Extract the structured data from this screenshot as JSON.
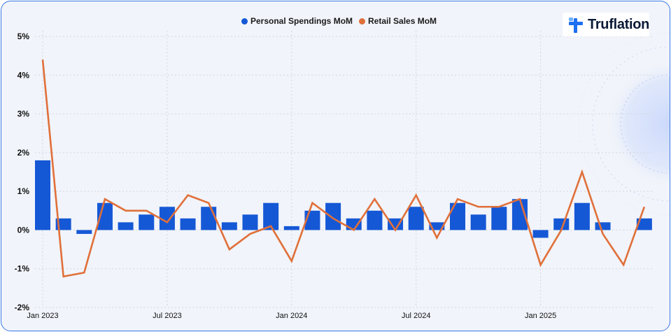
{
  "brand": {
    "name": "Truflation",
    "logo_colors": {
      "mark": "#1f6ff2",
      "accent": "#6fb2ff",
      "text": "#0b1a38"
    }
  },
  "colors": {
    "series_bars": "#1558d6",
    "series_line": "#e0703a",
    "background": "#f1f4fa",
    "border": "#3b78e7",
    "grid": "#d3d7de"
  },
  "chart_data": {
    "type": "bar",
    "title": "",
    "xlabel": "",
    "ylabel": "",
    "ylim": [
      -2,
      5
    ],
    "yticks": [
      -2,
      -1,
      0,
      1,
      2,
      3,
      4,
      5
    ],
    "ytick_labels": [
      "-2%",
      "-1%",
      "0%",
      "1%",
      "2%",
      "3%",
      "4%",
      "5%"
    ],
    "xtick_labels": [
      {
        "label": "Jan 2023",
        "index": 0
      },
      {
        "label": "Jul 2023",
        "index": 6
      },
      {
        "label": "Jan 2024",
        "index": 12
      },
      {
        "label": "Jul 2024",
        "index": 18
      },
      {
        "label": "Jan 2025",
        "index": 24
      }
    ],
    "categories": [
      "Jan 2023",
      "Feb 2023",
      "Mar 2023",
      "Apr 2023",
      "May 2023",
      "Jun 2023",
      "Jul 2023",
      "Aug 2023",
      "Sep 2023",
      "Oct 2023",
      "Nov 2023",
      "Dec 2023",
      "Jan 2024",
      "Feb 2024",
      "Mar 2024",
      "Apr 2024",
      "May 2024",
      "Jun 2024",
      "Jul 2024",
      "Aug 2024",
      "Sep 2024",
      "Oct 2024",
      "Nov 2024",
      "Dec 2024",
      "Jan 2025",
      "Feb 2025",
      "Mar 2025",
      "Apr 2025",
      "May 2025",
      "Jun 2025"
    ],
    "legend_position": "top-center",
    "grid": true,
    "series": [
      {
        "name": "Personal Spendings MoM",
        "type": "bar",
        "values": [
          1.8,
          0.3,
          -0.1,
          0.7,
          0.2,
          0.4,
          0.6,
          0.3,
          0.6,
          0.2,
          0.4,
          0.7,
          0.1,
          0.5,
          0.7,
          0.3,
          0.5,
          0.3,
          0.6,
          0.2,
          0.7,
          0.4,
          0.6,
          0.8,
          -0.2,
          0.3,
          0.7,
          0.2,
          null,
          0.3
        ]
      },
      {
        "name": "Retail Sales MoM",
        "type": "line",
        "values": [
          4.4,
          -1.2,
          -1.1,
          0.8,
          0.5,
          0.5,
          0.2,
          0.9,
          0.7,
          -0.5,
          -0.1,
          0.1,
          -0.8,
          0.7,
          0.3,
          0.0,
          0.8,
          0.0,
          0.9,
          -0.2,
          0.8,
          0.6,
          0.6,
          0.8,
          -0.9,
          0.0,
          1.5,
          -0.1,
          -0.9,
          0.6
        ]
      }
    ]
  }
}
